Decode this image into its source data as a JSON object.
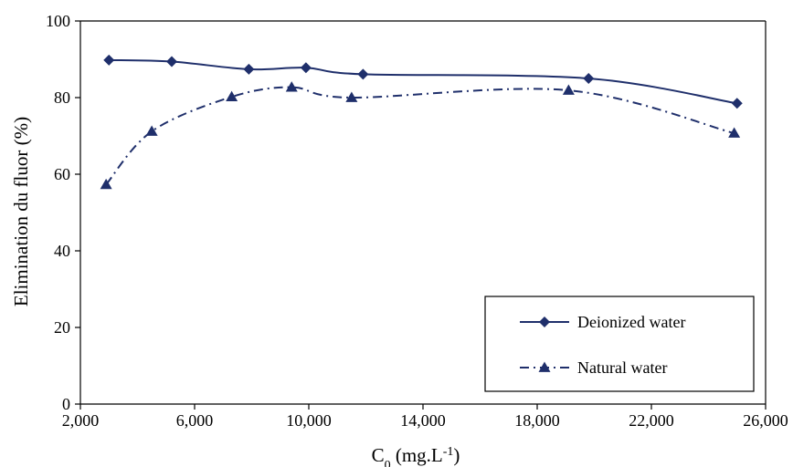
{
  "chart_data": {
    "type": "line",
    "title": "",
    "xlabel": {
      "main": "C",
      "sub": "0",
      "rest": " (mg.L",
      "sup": "-1",
      "close": ")"
    },
    "ylabel": "Elimination du fluor (%)",
    "xlim": [
      2000,
      26000
    ],
    "ylim": [
      0,
      100
    ],
    "xticks": [
      2000,
      6000,
      10000,
      14000,
      18000,
      22000,
      26000
    ],
    "xtick_labels": [
      "2,000",
      "6,000",
      "10,000",
      "14,000",
      "18,000",
      "22,000",
      "26,000"
    ],
    "yticks": [
      0,
      20,
      40,
      60,
      80,
      100
    ],
    "ytick_labels": [
      "0",
      "20",
      "40",
      "60",
      "80",
      "100"
    ],
    "grid": false,
    "legend_position": "bottom-right",
    "series": [
      {
        "name": "Deionized water",
        "marker": "diamond",
        "line_style": "solid",
        "color": "#1f2f6b",
        "x": [
          3000,
          5200,
          7900,
          9900,
          11900,
          19800,
          25000
        ],
        "y": [
          89.8,
          89.4,
          87.4,
          87.8,
          86.1,
          85.0,
          78.5
        ]
      },
      {
        "name": "Natural water",
        "marker": "triangle",
        "line_style": "dash-dot",
        "color": "#1f2f6b",
        "x": [
          2900,
          4500,
          7300,
          9400,
          11500,
          19100,
          24900
        ],
        "y": [
          57.3,
          71.2,
          80.2,
          82.7,
          80.0,
          81.9,
          70.7
        ]
      }
    ]
  }
}
